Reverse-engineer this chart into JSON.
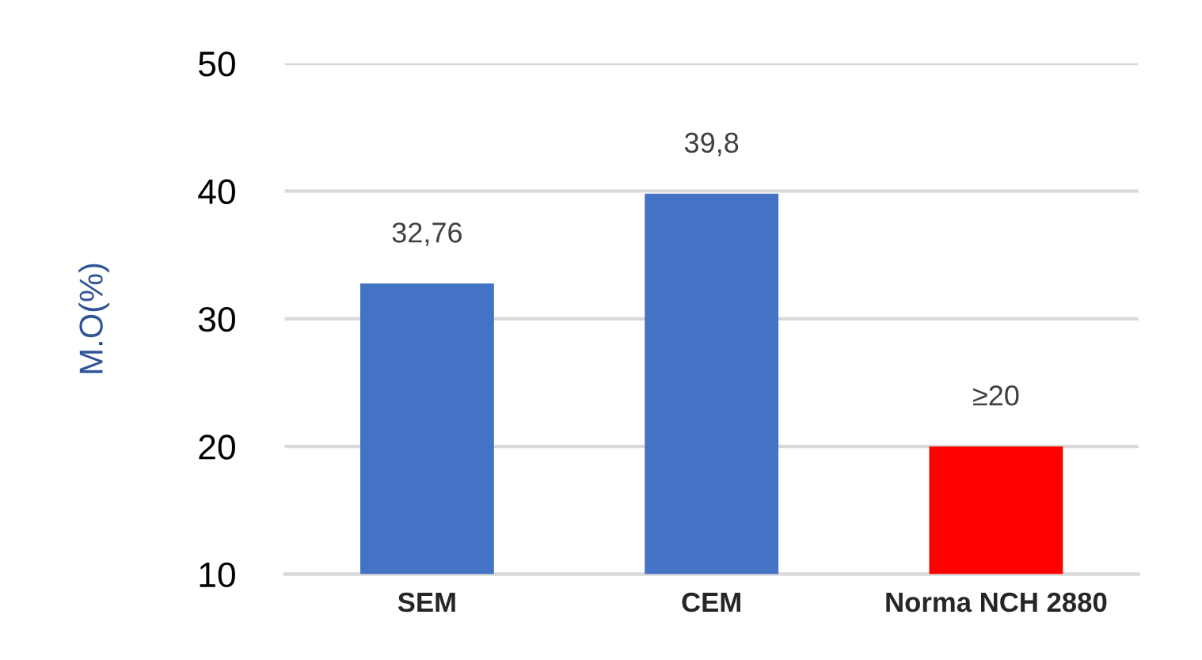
{
  "chart_data": {
    "type": "bar",
    "ylabel": "M.O(%)",
    "categories": [
      "SEM",
      "CEM",
      "Norma NCH 2880"
    ],
    "values": [
      32.76,
      39.8,
      20
    ],
    "colors": [
      "#4472c4",
      "#4472c4",
      "#ff0000"
    ],
    "value_labels": [
      "32,76",
      "39,8",
      "≥20"
    ],
    "ylim": [
      10,
      50
    ],
    "yticks": [
      10,
      20,
      30,
      40,
      50
    ],
    "grid": "y",
    "legend": false
  }
}
